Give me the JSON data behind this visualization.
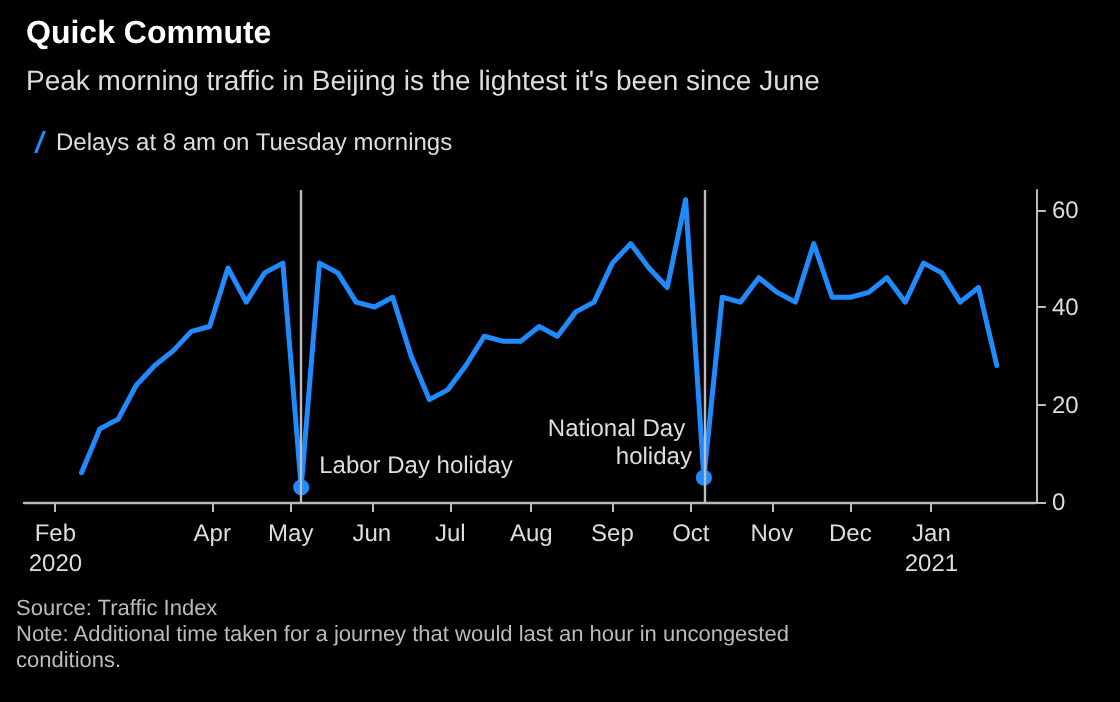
{
  "chart_data": {
    "type": "line",
    "title": "Quick Commute",
    "subtitle": "Peak morning traffic in Beijing is the lightest it's been since June",
    "x": [
      "2020-02-11",
      "2020-02-18",
      "2020-02-25",
      "2020-03-03",
      "2020-03-10",
      "2020-03-17",
      "2020-03-24",
      "2020-03-31",
      "2020-04-07",
      "2020-04-14",
      "2020-04-21",
      "2020-04-28",
      "2020-05-05",
      "2020-05-12",
      "2020-05-19",
      "2020-05-26",
      "2020-06-02",
      "2020-06-09",
      "2020-06-16",
      "2020-06-23",
      "2020-06-30",
      "2020-07-07",
      "2020-07-14",
      "2020-07-21",
      "2020-07-28",
      "2020-08-04",
      "2020-08-11",
      "2020-08-18",
      "2020-08-25",
      "2020-09-01",
      "2020-09-08",
      "2020-09-15",
      "2020-09-22",
      "2020-09-29",
      "2020-10-06",
      "2020-10-13",
      "2020-10-20",
      "2020-10-27",
      "2020-11-03",
      "2020-11-10",
      "2020-11-17",
      "2020-11-24",
      "2020-12-01",
      "2020-12-08",
      "2020-12-15",
      "2020-12-22",
      "2020-12-29",
      "2021-01-05",
      "2021-01-12",
      "2021-01-19",
      "2021-01-26"
    ],
    "series": [
      {
        "name": "Delays at 8 am on Tuesday mornings",
        "color": "#1f8bff",
        "values": [
          6,
          15,
          17,
          24,
          28,
          31,
          35,
          36,
          48,
          41,
          47,
          49,
          3,
          49,
          47,
          41,
          40,
          42,
          30,
          21,
          23,
          28,
          34,
          33,
          33,
          36,
          34,
          39,
          41,
          49,
          53,
          48,
          44,
          62,
          5,
          42,
          41,
          46,
          43,
          41,
          53,
          42,
          42,
          43,
          46,
          41,
          49,
          47,
          41,
          44,
          28
        ]
      }
    ],
    "xlim": [
      "2020-01-20",
      "2021-02-10"
    ],
    "xticks": [
      {
        "value": "2020-02-01",
        "label": "Feb\n2020"
      },
      {
        "value": "2020-04-01",
        "label": "Apr"
      },
      {
        "value": "2020-05-01",
        "label": "May"
      },
      {
        "value": "2020-06-01",
        "label": "Jun"
      },
      {
        "value": "2020-07-01",
        "label": "Jul"
      },
      {
        "value": "2020-08-01",
        "label": "Aug"
      },
      {
        "value": "2020-09-01",
        "label": "Sep"
      },
      {
        "value": "2020-10-01",
        "label": "Oct"
      },
      {
        "value": "2020-11-01",
        "label": "Nov"
      },
      {
        "value": "2020-12-01",
        "label": "Dec"
      },
      {
        "value": "2021-01-01",
        "label": "Jan\n2021"
      }
    ],
    "ylim": [
      0,
      64
    ],
    "yticks": [
      0,
      20,
      40,
      60
    ],
    "ref_lines": [
      {
        "axis": "x",
        "value": "2020-05-05",
        "color": "#bbbbbb"
      },
      {
        "axis": "x",
        "value": "2020-10-06",
        "color": "#bbbbbb"
      }
    ],
    "annotations": [
      {
        "text": "Labor Day holiday",
        "x": "2020-05-05",
        "y": 3
      },
      {
        "text": "National Day holiday",
        "x": "2020-10-06",
        "y": 5
      },
      "Source: Traffic Index",
      "Note: Additional time taken for a journey that would last an hour in uncongested conditions."
    ],
    "grid": false,
    "legend": "top left",
    "marker": "none",
    "line_style": "solid"
  }
}
